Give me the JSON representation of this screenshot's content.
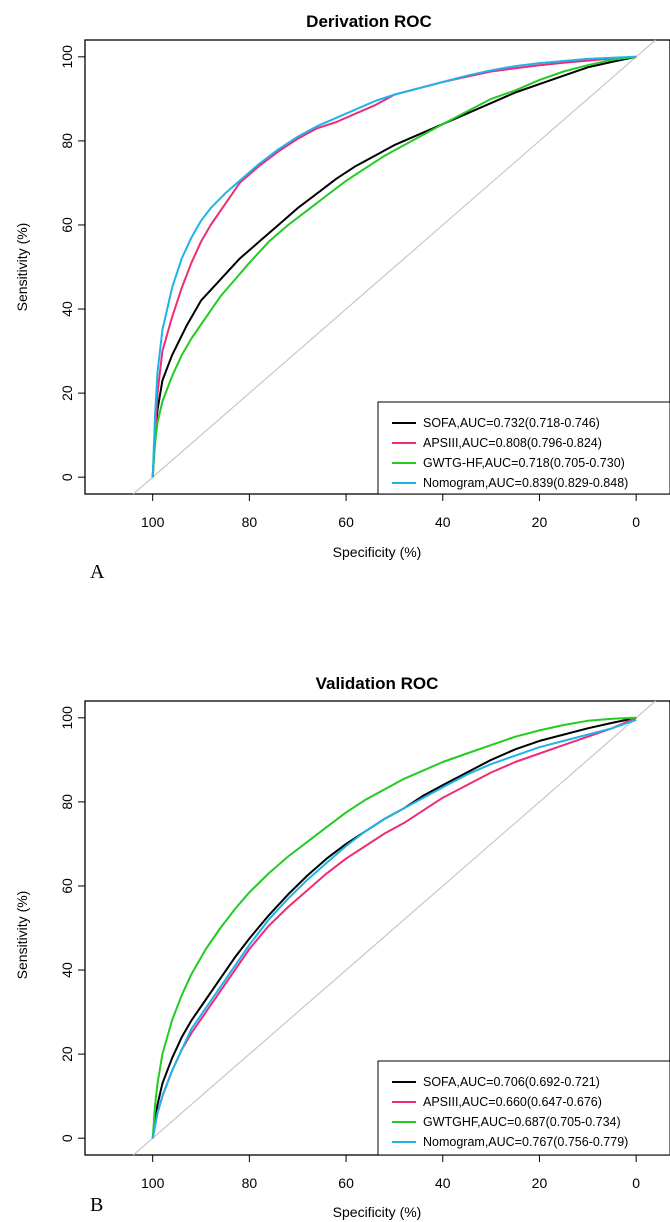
{
  "chart_data": [
    {
      "type": "line",
      "panel_label": "A",
      "title": "Derivation ROC",
      "xlabel": "Specificity (%)",
      "ylabel": "Sensitivity (%)",
      "xlim": [
        114,
        -7
      ],
      "ylim": [
        -4,
        104
      ],
      "x_reversed": true,
      "x_ticks": [
        100,
        80,
        60,
        40,
        20,
        0
      ],
      "y_ticks": [
        0,
        20,
        40,
        60,
        80,
        100
      ],
      "reference_line": "diagonal",
      "legend_position": "bottom-right",
      "series": [
        {
          "name": "SOFA,AUC=0.732(0.718-0.746)",
          "color": "#000000",
          "x": [
            100,
            99.5,
            99,
            98,
            96,
            93,
            90,
            86,
            82,
            78,
            74,
            70,
            66,
            62,
            58,
            54,
            50,
            45,
            40,
            35,
            30,
            25,
            20,
            15,
            10,
            5,
            0
          ],
          "y": [
            0,
            10,
            16,
            23,
            29,
            36,
            42,
            47,
            52,
            56,
            60,
            64,
            67.5,
            71,
            74,
            76.5,
            79,
            81.5,
            84,
            86.5,
            89,
            91.5,
            93.5,
            95.5,
            97.5,
            98.8,
            100
          ]
        },
        {
          "name": "APSIII,AUC=0.808(0.796-0.824)",
          "color": "#ee2c7a",
          "x": [
            100,
            99.5,
            99,
            98,
            96,
            94,
            92,
            90,
            88,
            85,
            82,
            78,
            74,
            70,
            66,
            62,
            58,
            54,
            50,
            45,
            40,
            35,
            30,
            25,
            20,
            15,
            10,
            5,
            0
          ],
          "y": [
            0,
            10,
            20,
            30,
            38,
            45,
            51,
            56,
            60,
            65,
            70,
            74,
            77.5,
            80.5,
            83,
            84.5,
            86.5,
            88.5,
            91,
            92.5,
            94,
            95.3,
            96.5,
            97.3,
            98,
            98.6,
            99.1,
            99.6,
            100
          ]
        },
        {
          "name": "GWTG-HF,AUC=0.718(0.705-0.730)",
          "color": "#22cc22",
          "x": [
            100,
            99.5,
            99,
            98,
            96,
            94,
            92,
            89,
            86,
            83,
            80,
            76,
            72,
            68,
            64,
            60,
            56,
            52,
            48,
            44,
            40,
            35,
            30,
            25,
            20,
            15,
            10,
            5,
            0
          ],
          "y": [
            0,
            8,
            13,
            18,
            24,
            29,
            33,
            38,
            43,
            47,
            51,
            56,
            60,
            63.5,
            67,
            70.5,
            73.5,
            76.5,
            79,
            81.5,
            84,
            87,
            90,
            92,
            94.5,
            96.5,
            98,
            99.3,
            100
          ]
        },
        {
          "name": "Nomogram,AUC=0.839(0.829-0.848)",
          "color": "#1eb4ea",
          "x": [
            100,
            99.5,
            99,
            98,
            96,
            94,
            92,
            90,
            88,
            85,
            82,
            78,
            74,
            70,
            66,
            62,
            58,
            54,
            50,
            45,
            40,
            35,
            30,
            25,
            20,
            15,
            10,
            5,
            0
          ],
          "y": [
            0,
            15,
            25,
            35,
            45,
            52,
            57,
            61,
            64,
            67.5,
            70.5,
            74.5,
            78,
            81,
            83.5,
            85.5,
            87.5,
            89.5,
            91,
            92.5,
            94,
            95.5,
            96.8,
            97.8,
            98.5,
            99,
            99.5,
            99.8,
            100
          ]
        }
      ]
    },
    {
      "type": "line",
      "panel_label": "B",
      "title": "Validation ROC",
      "xlabel": "Specificity (%)",
      "ylabel": "Sensitivity (%)",
      "xlim": [
        114,
        -7
      ],
      "ylim": [
        -4,
        104
      ],
      "x_reversed": true,
      "x_ticks": [
        100,
        80,
        60,
        40,
        20,
        0
      ],
      "y_ticks": [
        0,
        20,
        40,
        60,
        80,
        100
      ],
      "reference_line": "diagonal",
      "legend_position": "bottom-right",
      "series": [
        {
          "name": "SOFA,AUC=0.706(0.692-0.721)",
          "color": "#000000",
          "x": [
            100,
            99,
            98,
            96,
            94,
            92,
            89,
            86,
            83,
            80,
            76,
            72,
            68,
            64,
            60,
            56,
            52,
            48,
            44,
            40,
            35,
            30,
            25,
            20,
            15,
            10,
            5,
            0
          ],
          "y": [
            0,
            8,
            13,
            19,
            24,
            28,
            33,
            38,
            43,
            47.5,
            53,
            58,
            62.5,
            66.5,
            70,
            73,
            76,
            78.5,
            81.5,
            84,
            87,
            90,
            92.5,
            94.5,
            96,
            97.5,
            98.8,
            100
          ]
        },
        {
          "name": "APSIII,AUC=0.660(0.647-0.676)",
          "color": "#ee2c7a",
          "x": [
            100,
            99,
            98,
            96,
            94,
            92,
            89,
            86,
            83,
            80,
            76,
            72,
            68,
            64,
            60,
            56,
            52,
            48,
            44,
            40,
            35,
            30,
            25,
            20,
            15,
            10,
            5,
            0
          ],
          "y": [
            0,
            6,
            10,
            16,
            21,
            25,
            30,
            35,
            40,
            45,
            50.5,
            55,
            59,
            63,
            66.5,
            69.5,
            72.5,
            75,
            78,
            81,
            84,
            87,
            89.5,
            91.5,
            93.5,
            95.5,
            97.5,
            100
          ]
        },
        {
          "name": "GWTGHF,AUC=0.687(0.705-0.734)",
          "color": "#22cc22",
          "x": [
            100,
            99.5,
            99,
            98,
            96,
            94,
            92,
            89,
            86,
            83,
            80,
            76,
            72,
            68,
            64,
            60,
            56,
            52,
            48,
            44,
            40,
            35,
            30,
            25,
            20,
            15,
            10,
            5,
            0
          ],
          "y": [
            0,
            8,
            13,
            20,
            28,
            34,
            39,
            45,
            50,
            54.5,
            58.5,
            63,
            67,
            70.5,
            74,
            77.5,
            80.5,
            83,
            85.5,
            87.5,
            89.5,
            91.5,
            93.5,
            95.5,
            97,
            98.3,
            99.3,
            99.8,
            100
          ]
        },
        {
          "name": "Nomogram,AUC=0.767(0.756-0.779)",
          "color": "#1eb4ea",
          "x": [
            100,
            99,
            98,
            96,
            94,
            92,
            89,
            86,
            83,
            80,
            76,
            72,
            68,
            64,
            60,
            56,
            52,
            48,
            44,
            40,
            35,
            30,
            25,
            20,
            15,
            10,
            5,
            0
          ],
          "y": [
            0,
            6,
            10,
            16,
            21,
            26,
            31,
            36,
            41,
            46,
            52,
            57,
            61.5,
            65.5,
            69.5,
            73,
            76,
            78.5,
            81,
            83.5,
            86.5,
            89,
            91,
            93,
            94.5,
            96,
            97.5,
            99.5
          ]
        }
      ]
    }
  ]
}
